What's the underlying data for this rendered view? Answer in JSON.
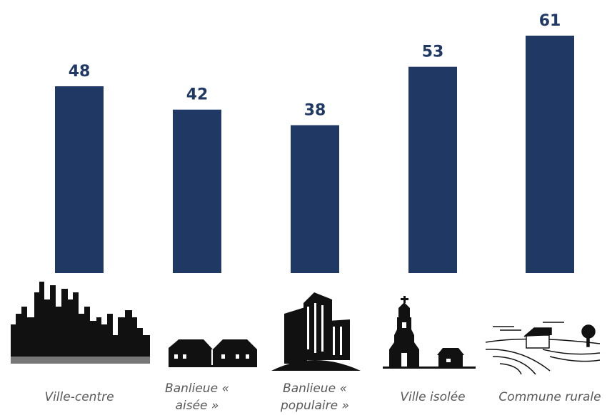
{
  "chart_data": {
    "type": "bar",
    "categories": [
      "Ville-centre",
      "Banlieue « aisée »",
      "Banlieue « populaire »",
      "Ville isolée",
      "Commune rurale"
    ],
    "values": [
      48,
      42,
      38,
      53,
      61
    ],
    "color": "#1f3864"
  }
}
